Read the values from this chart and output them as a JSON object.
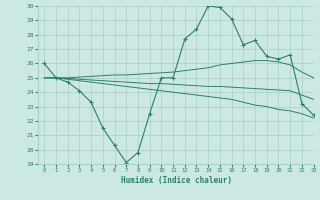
{
  "x": [
    0,
    1,
    2,
    3,
    4,
    5,
    6,
    7,
    8,
    9,
    10,
    11,
    12,
    13,
    14,
    15,
    16,
    17,
    18,
    19,
    20,
    21,
    22,
    23
  ],
  "line_main": [
    26,
    25,
    24.7,
    24.1,
    23.3,
    21.5,
    20.3,
    19.1,
    19.8,
    22.5,
    25.0,
    25.0,
    27.7,
    28.4,
    30.0,
    29.9,
    29.1,
    27.3,
    27.6,
    26.5,
    26.3,
    26.6,
    23.2,
    22.4
  ],
  "line_upper": [
    25.0,
    25.0,
    25.0,
    25.05,
    25.1,
    25.15,
    25.2,
    25.2,
    25.25,
    25.3,
    25.35,
    25.4,
    25.5,
    25.6,
    25.7,
    25.9,
    26.0,
    26.1,
    26.2,
    26.2,
    26.1,
    25.9,
    25.4,
    25.0
  ],
  "line_mid": [
    25.0,
    25.0,
    24.95,
    24.9,
    24.85,
    24.8,
    24.75,
    24.7,
    24.65,
    24.6,
    24.6,
    24.55,
    24.5,
    24.45,
    24.4,
    24.4,
    24.35,
    24.3,
    24.25,
    24.2,
    24.15,
    24.1,
    23.8,
    23.5
  ],
  "line_lower": [
    25.0,
    25.0,
    24.9,
    24.8,
    24.7,
    24.6,
    24.5,
    24.4,
    24.3,
    24.2,
    24.1,
    24.0,
    23.9,
    23.8,
    23.7,
    23.6,
    23.5,
    23.3,
    23.1,
    23.0,
    22.8,
    22.7,
    22.5,
    22.2
  ],
  "color": "#2a7f72",
  "bg_color": "#cce8e2",
  "grid_color": "#aacfc8",
  "xlabel": "Humidex (Indice chaleur)",
  "ylim": [
    19,
    30
  ],
  "xlim": [
    -0.5,
    23
  ],
  "yticks": [
    19,
    20,
    21,
    22,
    23,
    24,
    25,
    26,
    27,
    28,
    29,
    30
  ],
  "xticks": [
    0,
    1,
    2,
    3,
    4,
    5,
    6,
    7,
    8,
    9,
    10,
    11,
    12,
    13,
    14,
    15,
    16,
    17,
    18,
    19,
    20,
    21,
    22,
    23
  ]
}
